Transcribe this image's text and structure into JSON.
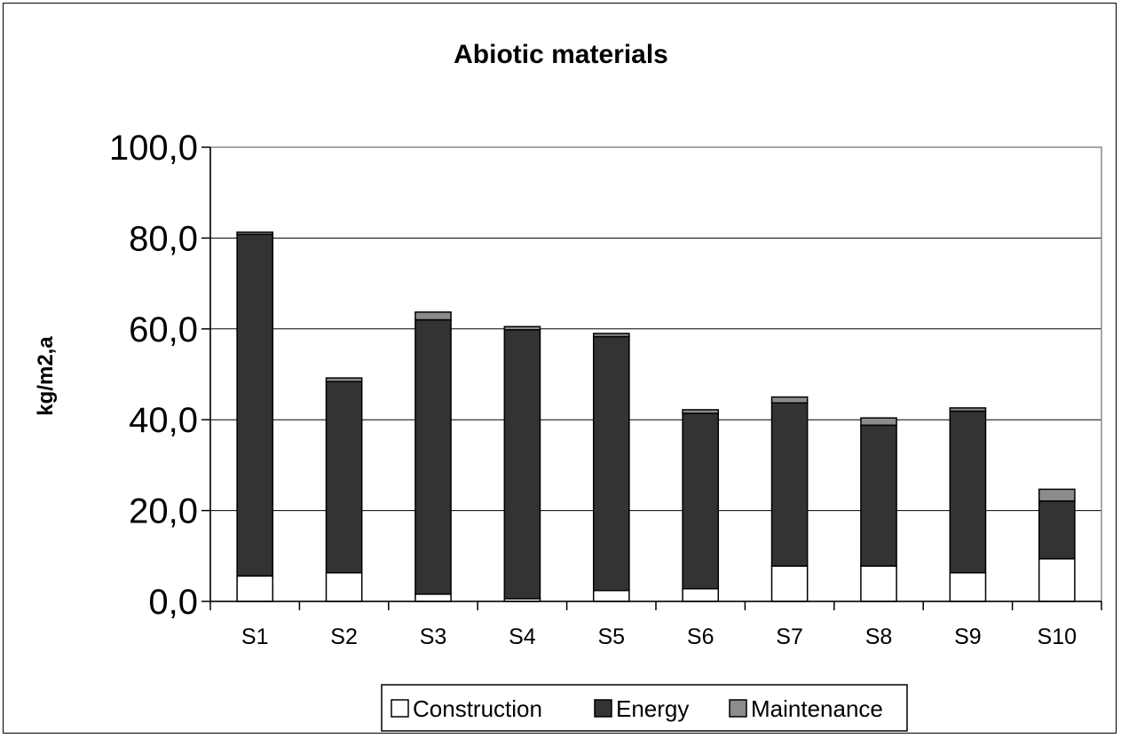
{
  "chart_data": {
    "type": "bar",
    "stacked": true,
    "title": "Abiotic materials",
    "xlabel": "",
    "ylabel": "kg/m2,a",
    "ylim": [
      0,
      100
    ],
    "yticks": [
      0,
      20,
      40,
      60,
      80,
      100
    ],
    "ytick_labels": [
      "0,0",
      "20,0",
      "40,0",
      "60,0",
      "80,0",
      "100,0"
    ],
    "grid": true,
    "legend_position": "bottom",
    "categories": [
      "S1",
      "S2",
      "S3",
      "S4",
      "S5",
      "S6",
      "S7",
      "S8",
      "S9",
      "S10"
    ],
    "series": [
      {
        "name": "Construction",
        "color": "#ffffff",
        "values": [
          5.6,
          6.3,
          1.6,
          0.6,
          2.4,
          2.8,
          7.8,
          7.8,
          6.3,
          9.4
        ]
      },
      {
        "name": "Energy",
        "color": "#333333",
        "values": [
          75.2,
          42.1,
          60.4,
          59.2,
          55.9,
          38.6,
          35.9,
          31.0,
          35.6,
          12.7
        ]
      },
      {
        "name": "Maintenance",
        "color": "#8c8c8c",
        "values": [
          0.5,
          0.8,
          1.7,
          0.7,
          0.7,
          0.8,
          1.3,
          1.6,
          0.7,
          2.6
        ]
      }
    ]
  }
}
